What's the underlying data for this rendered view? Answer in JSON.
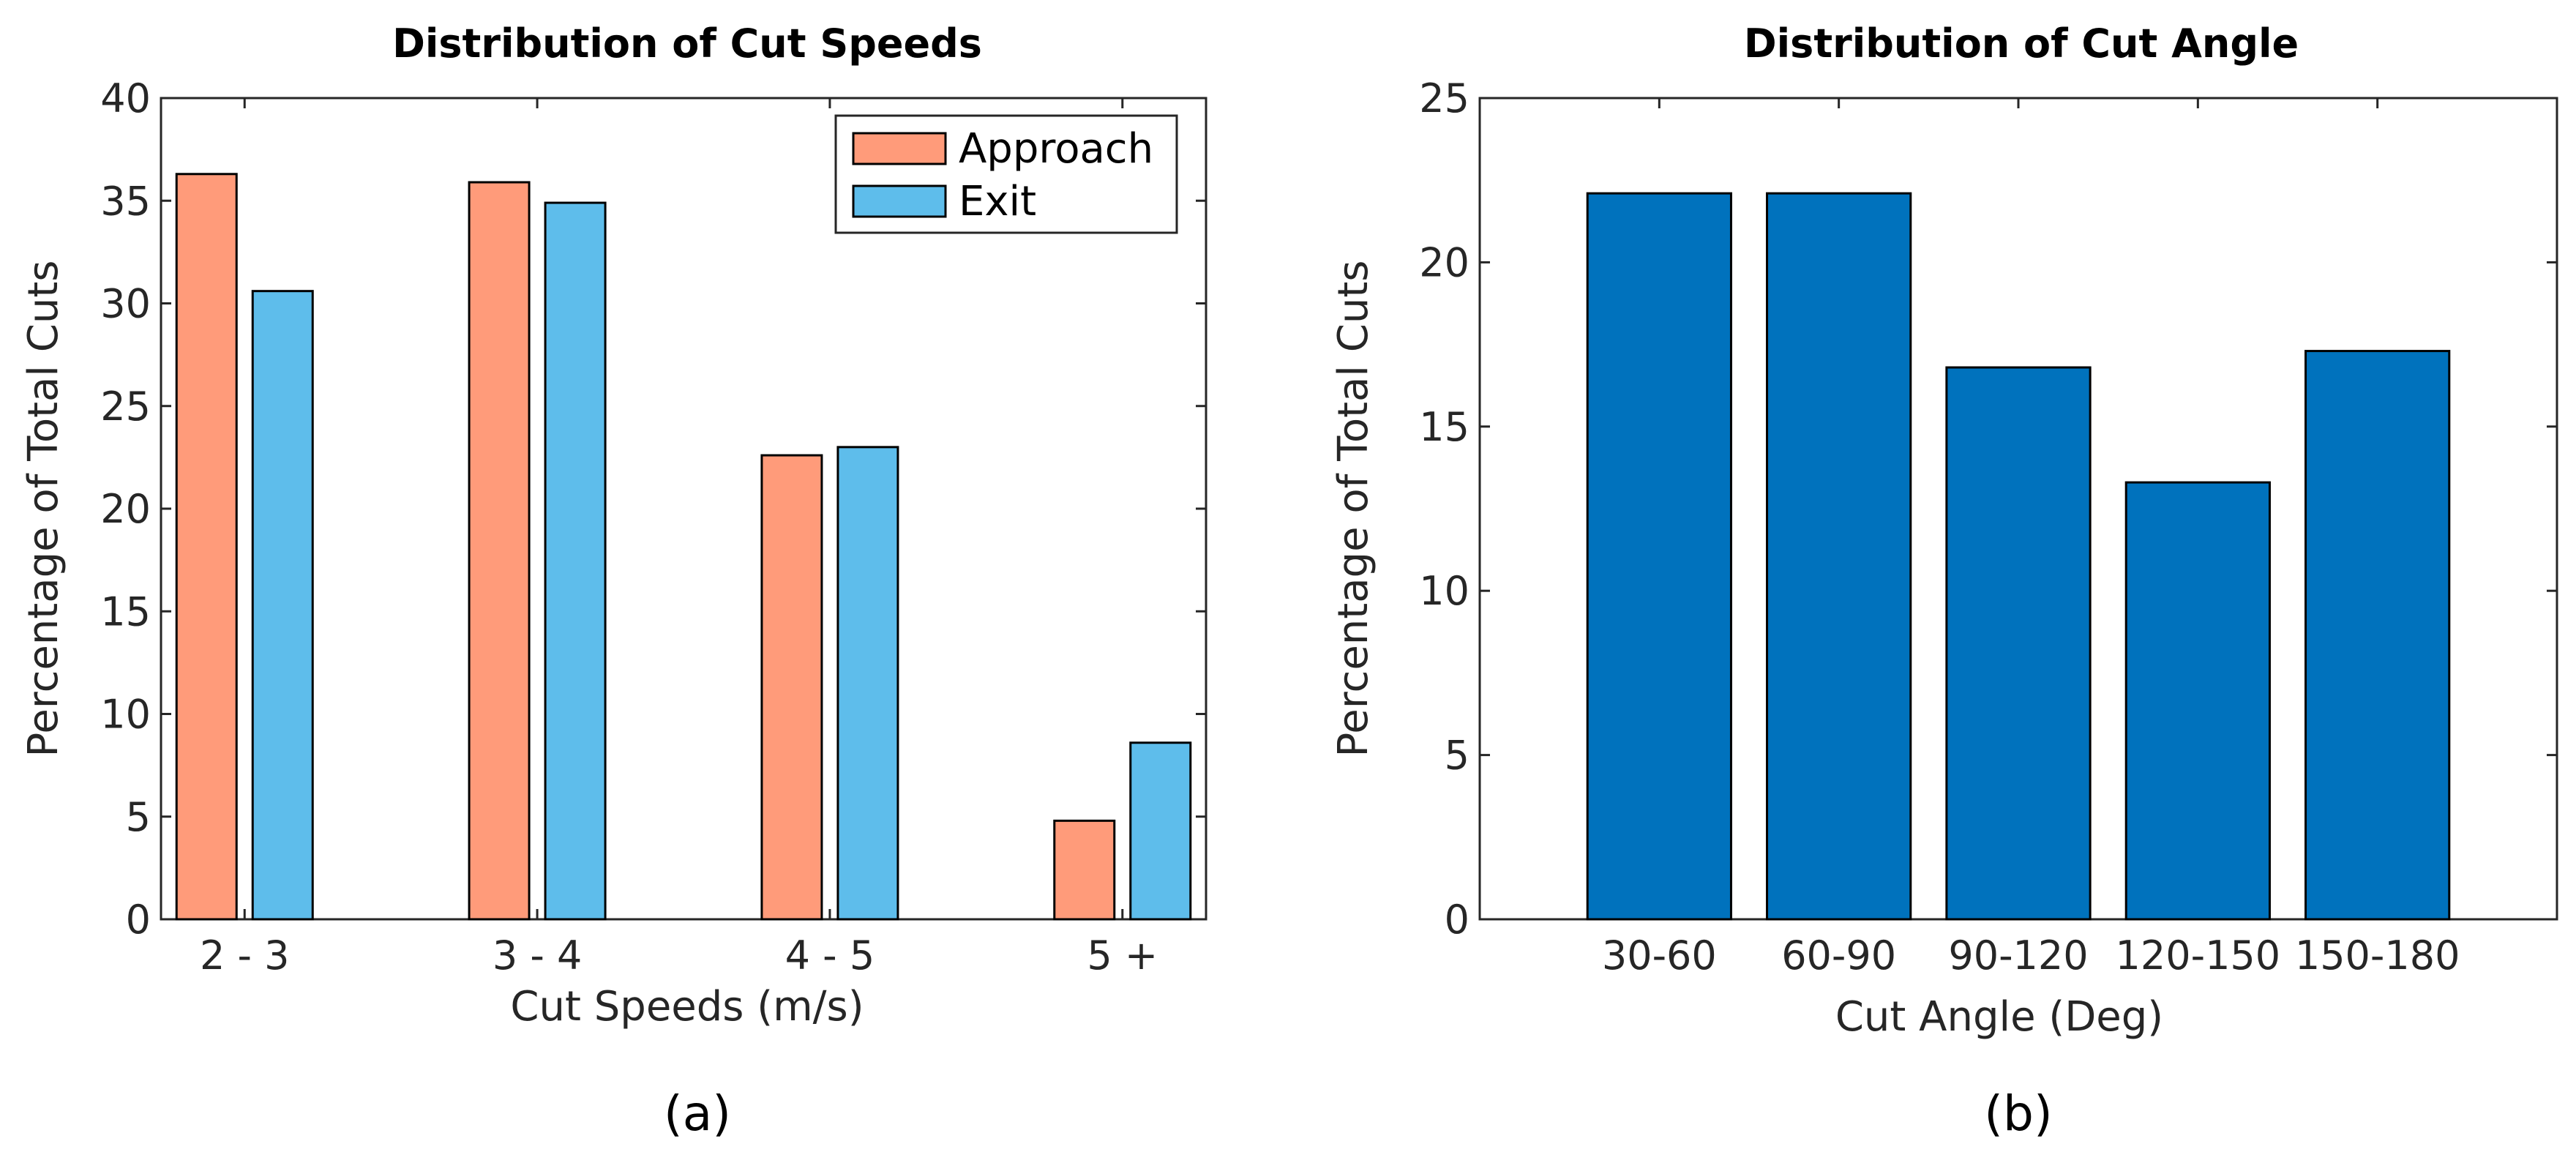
{
  "chart_data": [
    {
      "type": "bar",
      "title": "Distribution of Cut Speeds",
      "xlabel": "Cut Speeds (m/s)",
      "ylabel": "Percentage of Total Cuts",
      "caption": "(a)",
      "categories": [
        "2 - 3",
        "3 - 4",
        "4 - 5",
        "5 +"
      ],
      "ylim": [
        0,
        40
      ],
      "yticks": [
        0,
        5,
        10,
        15,
        20,
        25,
        30,
        35,
        40
      ],
      "legend_position": "top-right",
      "series": [
        {
          "name": "Approach",
          "color": "#FF9B7A",
          "values": [
            36.3,
            35.9,
            22.6,
            4.8
          ]
        },
        {
          "name": "Exit",
          "color": "#5EBDEB",
          "values": [
            30.6,
            34.9,
            23.0,
            8.6
          ]
        }
      ]
    },
    {
      "type": "bar",
      "title": "Distribution of Cut Angle",
      "xlabel": "Cut Angle (Deg)",
      "ylabel": "Percentage of Total Cuts",
      "caption": "(b)",
      "categories": [
        "30-60",
        "60-90",
        "90-120",
        "120-150",
        "150-180"
      ],
      "ylim": [
        0,
        25
      ],
      "yticks": [
        0,
        5,
        10,
        15,
        20,
        25
      ],
      "series": [
        {
          "name": "Cut Angle",
          "color": "#0072BD",
          "values": [
            22.1,
            22.1,
            16.8,
            13.3,
            17.3
          ]
        }
      ]
    }
  ]
}
